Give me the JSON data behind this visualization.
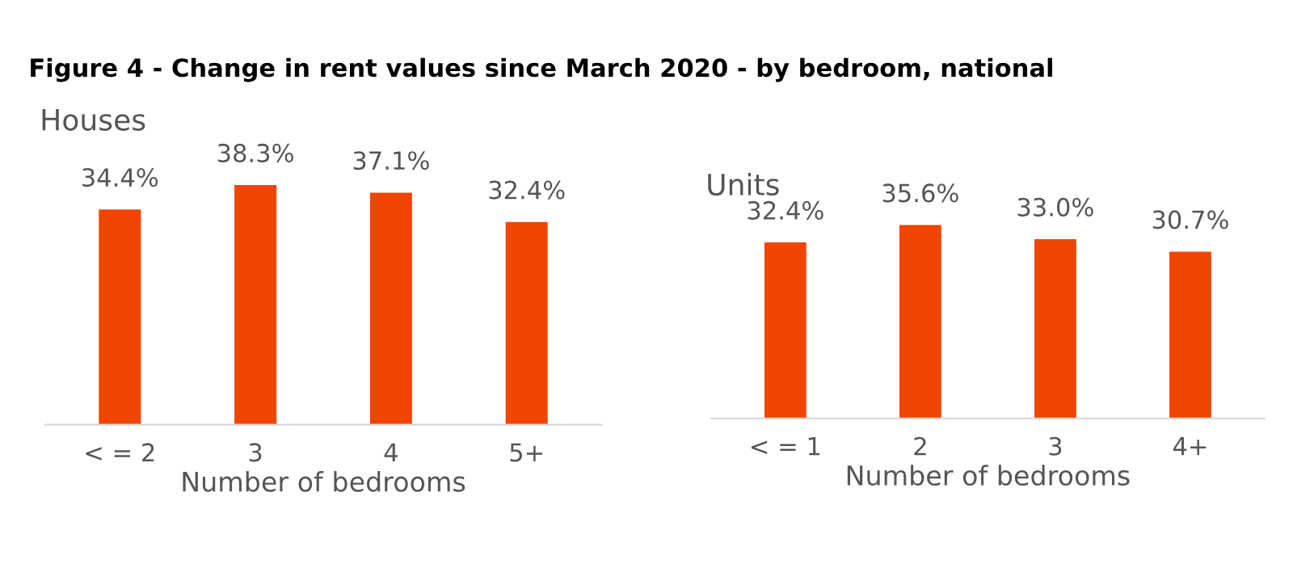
{
  "chart_data": [
    {
      "type": "bar",
      "title": "Figure 4 - Change in rent values since March 2020 - by bedroom, national",
      "subtitle": "Houses",
      "xlabel": "Number of bedrooms",
      "categories": [
        "< = 2",
        "3",
        "4",
        "5+"
      ],
      "values": [
        34.4,
        38.3,
        37.1,
        32.4
      ],
      "value_labels": [
        "34.4%",
        "38.3%",
        "37.1%",
        "32.4%"
      ],
      "color": "#f04500",
      "tick_labels": "x",
      "grid": false,
      "legend": false
    },
    {
      "type": "bar",
      "title": "Units",
      "xlabel": "Number of bedrooms",
      "categories": [
        "< = 1",
        "2",
        "3",
        "4+"
      ],
      "values": [
        32.4,
        35.6,
        33.0,
        30.7
      ],
      "value_labels": [
        "32.4%",
        "35.6%",
        "33.0%",
        "30.7%"
      ],
      "color": "#f04500",
      "tick_labels": "x",
      "grid": false,
      "legend": false
    }
  ]
}
